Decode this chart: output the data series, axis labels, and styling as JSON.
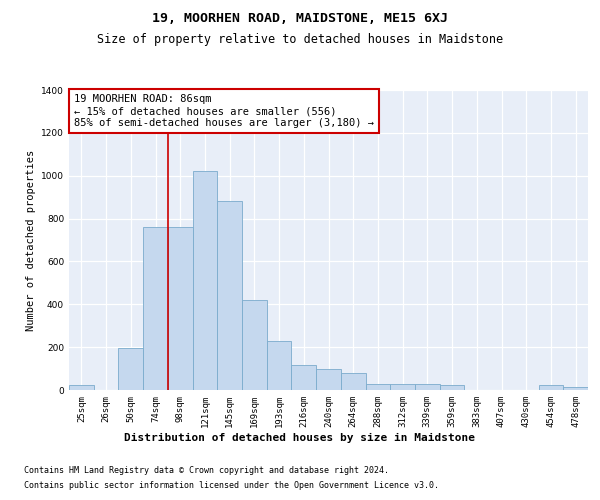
{
  "title": "19, MOORHEN ROAD, MAIDSTONE, ME15 6XJ",
  "subtitle": "Size of property relative to detached houses in Maidstone",
  "xlabel": "Distribution of detached houses by size in Maidstone",
  "ylabel": "Number of detached properties",
  "footnote1": "Contains HM Land Registry data © Crown copyright and database right 2024.",
  "footnote2": "Contains public sector information licensed under the Open Government Licence v3.0.",
  "categories": [
    "25sqm",
    "26sqm",
    "50sqm",
    "74sqm",
    "98sqm",
    "121sqm",
    "145sqm",
    "169sqm",
    "193sqm",
    "216sqm",
    "240sqm",
    "264sqm",
    "288sqm",
    "312sqm",
    "339sqm",
    "359sqm",
    "383sqm",
    "407sqm",
    "430sqm",
    "454sqm",
    "478sqm"
  ],
  "bar_values": [
    25,
    0,
    195,
    760,
    760,
    1020,
    880,
    420,
    230,
    115,
    100,
    80,
    30,
    30,
    30,
    25,
    0,
    0,
    0,
    25,
    15
  ],
  "bar_color": "#c5d8ee",
  "bar_edge_color": "#7aabcc",
  "property_line_color": "#cc0000",
  "annotation_text": "19 MOORHEN ROAD: 86sqm\n← 15% of detached houses are smaller (556)\n85% of semi-detached houses are larger (3,180) →",
  "annotation_box_color": "#ffffff",
  "annotation_box_edge_color": "#cc0000",
  "ylim": [
    0,
    1400
  ],
  "yticks": [
    0,
    200,
    400,
    600,
    800,
    1000,
    1200,
    1400
  ],
  "background_color": "#e8eef8",
  "title_fontsize": 9.5,
  "subtitle_fontsize": 8.5,
  "xlabel_fontsize": 8,
  "ylabel_fontsize": 7.5,
  "tick_fontsize": 6.5,
  "annotation_fontsize": 7.5,
  "footnote_fontsize": 6
}
